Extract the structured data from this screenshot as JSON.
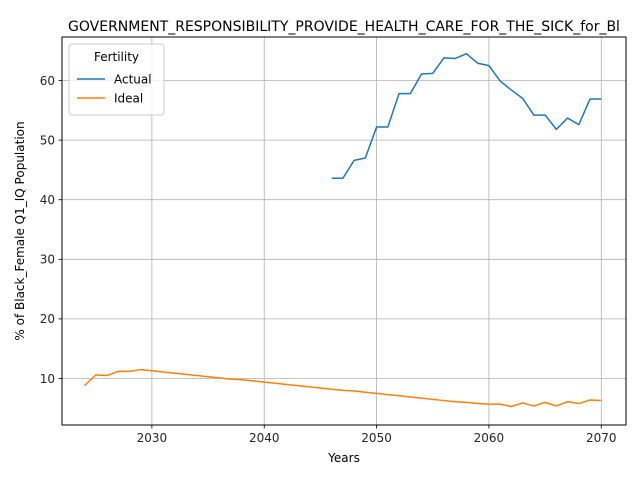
{
  "chart_data": {
    "type": "line",
    "title": "GOVERNMENT_RESPONSIBILITY_PROVIDE_HEALTH_CARE_FOR_THE_SICK_for_Bl",
    "xlabel": "Years",
    "ylabel": "% of Black_Female Q1_IQ Population",
    "xlim": [
      2022,
      2072.2
    ],
    "ylim": [
      2.2,
      67.3
    ],
    "xticks": [
      2030,
      2040,
      2050,
      2060,
      2070
    ],
    "yticks": [
      10,
      20,
      30,
      40,
      50,
      60
    ],
    "grid": true,
    "legend": {
      "title": "Fertility",
      "placement": "upper-left"
    },
    "series": [
      {
        "name": "Actual",
        "color": "#1f77b4",
        "x": [
          2046,
          2047,
          2048,
          2049,
          2050,
          2051,
          2052,
          2053,
          2054,
          2055,
          2056,
          2057,
          2058,
          2059,
          2060,
          2061,
          2062,
          2063,
          2064,
          2065,
          2066,
          2067,
          2068,
          2069,
          2070
        ],
        "y": [
          43.6,
          43.6,
          46.6,
          47.0,
          52.2,
          52.2,
          57.8,
          57.8,
          61.1,
          61.2,
          63.8,
          63.7,
          64.5,
          62.9,
          62.5,
          59.9,
          58.4,
          57.0,
          54.2,
          54.2,
          51.8,
          53.7,
          52.6,
          56.9,
          56.9
        ]
      },
      {
        "name": "Ideal",
        "color": "#ff7f0e",
        "x": [
          2024,
          2025,
          2026,
          2027,
          2028,
          2029,
          2030,
          2031,
          2032,
          2033,
          2034,
          2035,
          2036,
          2037,
          2038,
          2039,
          2040,
          2041,
          2042,
          2043,
          2044,
          2045,
          2046,
          2047,
          2048,
          2049,
          2050,
          2051,
          2052,
          2053,
          2054,
          2055,
          2056,
          2057,
          2058,
          2059,
          2060,
          2061,
          2062,
          2063,
          2064,
          2065,
          2066,
          2067,
          2068,
          2069,
          2070
        ],
        "y": [
          8.8,
          10.6,
          10.5,
          11.2,
          11.2,
          11.5,
          11.3,
          11.1,
          10.9,
          10.7,
          10.5,
          10.3,
          10.1,
          9.9,
          9.8,
          9.6,
          9.4,
          9.2,
          9.0,
          8.8,
          8.6,
          8.4,
          8.2,
          8.0,
          7.9,
          7.7,
          7.5,
          7.3,
          7.1,
          6.9,
          6.7,
          6.5,
          6.3,
          6.1,
          6.0,
          5.8,
          5.7,
          5.7,
          5.3,
          5.9,
          5.4,
          6.0,
          5.4,
          6.1,
          5.8,
          6.4,
          6.3
        ]
      }
    ]
  }
}
